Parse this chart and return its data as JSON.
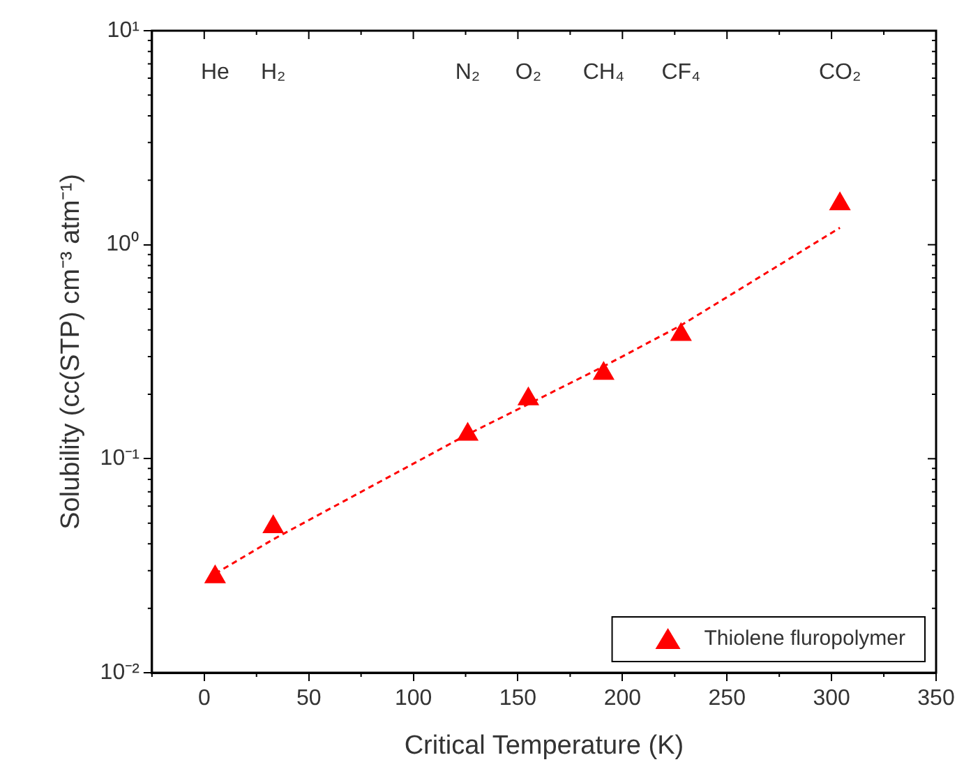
{
  "chart_data": {
    "type": "scatter",
    "xlabel": "Critical Temperature (K)",
    "ylabel": "Solubility (cc(STP) cm⁻³ atm⁻¹)",
    "xlim": [
      -25,
      350
    ],
    "xticks": [
      0,
      50,
      100,
      150,
      200,
      250,
      300,
      350
    ],
    "ylim": [
      0.01,
      10
    ],
    "yticks": [
      {
        "value": 0.01,
        "label": "10⁻²"
      },
      {
        "value": 0.1,
        "label": "10⁻¹"
      },
      {
        "value": 1,
        "label": "10⁰"
      },
      {
        "value": 10,
        "label": "10¹"
      }
    ],
    "log": "y",
    "grid": false,
    "legend": "bottom right",
    "series": [
      {
        "name": "Thiolene fluropolymer",
        "color": "#ff0000",
        "marker": "triangle",
        "x": [
          5.2,
          33,
          126,
          155,
          191,
          228,
          304
        ],
        "values": [
          0.028,
          0.048,
          0.13,
          0.19,
          0.25,
          0.38,
          1.55
        ]
      },
      {
        "type": "line",
        "color": "#ff0000",
        "marker": "none",
        "line_style": "dashed",
        "x": [
          5.2,
          33,
          126,
          155,
          191,
          228,
          304
        ],
        "values": [
          0.029,
          0.042,
          0.13,
          0.18,
          0.27,
          0.42,
          1.2
        ]
      }
    ],
    "annotations": [
      "He",
      "H₂",
      "N₂",
      "O₂",
      "CH₄",
      "CF₄",
      "CO₂"
    ]
  }
}
